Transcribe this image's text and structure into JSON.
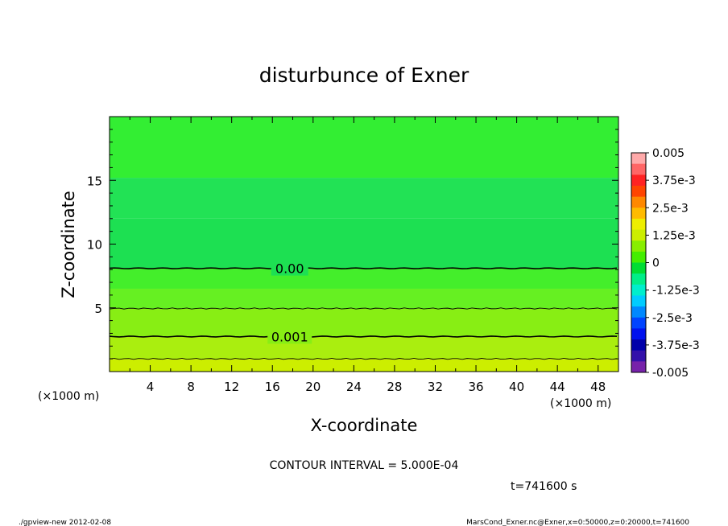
{
  "chart_data": {
    "type": "heatmap",
    "title": "disturbunce of Exner",
    "xlabel": "X-coordinate",
    "ylabel": "Z-coordinate",
    "x_unit": "(×1000 m)",
    "z_unit": "(×1000 m)",
    "xlim": [
      0,
      50
    ],
    "ylim": [
      0,
      20
    ],
    "x_ticks": [
      4,
      8,
      12,
      16,
      20,
      24,
      28,
      32,
      36,
      40,
      44,
      48
    ],
    "y_ticks": [
      5,
      10,
      15
    ],
    "contour_interval_label": "CONTOUR INTERVAL = 5.000E-04",
    "time_label": "t=741600 s",
    "contours": [
      {
        "z": 8.1,
        "value": 0.0,
        "label": "0.00",
        "label_x": 17.7,
        "major": true
      },
      {
        "z": 4.95,
        "value": 0.0005,
        "label": "",
        "major": false
      },
      {
        "z": 2.75,
        "value": 0.001,
        "label": "0.001",
        "label_x": 17.7,
        "major": true
      },
      {
        "z": 1.0,
        "value": 0.0015,
        "label": "",
        "major": false
      }
    ],
    "field_bands": [
      {
        "z0": 15.2,
        "z1": 20.0,
        "color": "#33ee33"
      },
      {
        "z0": 12.0,
        "z1": 15.2,
        "color": "#22e255"
      },
      {
        "z0": 8.1,
        "z1": 12.0,
        "color": "#1de052"
      },
      {
        "z0": 6.5,
        "z1": 8.1,
        "color": "#44ee2b"
      },
      {
        "z0": 4.95,
        "z1": 6.5,
        "color": "#66f022"
      },
      {
        "z0": 2.75,
        "z1": 4.95,
        "color": "#88ee14"
      },
      {
        "z0": 1.0,
        "z1": 2.75,
        "color": "#aaee0f"
      },
      {
        "z0": 0.0,
        "z1": 1.0,
        "color": "#ccee00"
      }
    ],
    "colorbar": {
      "labels": [
        "0.005",
        "3.75e-3",
        "2.5e-3",
        "1.25e-3",
        "0",
        "-1.25e-3",
        "-2.5e-3",
        "-3.75e-3",
        "-0.005"
      ],
      "colors": [
        "#ffaaaa",
        "#ff6666",
        "#ff2222",
        "#ff4400",
        "#ff8800",
        "#ffbb00",
        "#eeee00",
        "#ccee00",
        "#88ee00",
        "#44ee00",
        "#00dd33",
        "#00ee88",
        "#00eecc",
        "#00ccff",
        "#0088ff",
        "#0044ff",
        "#0011ee",
        "#0000aa",
        "#3311aa",
        "#7722aa"
      ]
    }
  },
  "footer": {
    "left": "./gpview-new   2012-02-08",
    "right": "MarsCond_Exner.nc@Exner,x=0:50000,z=0:20000,t=741600"
  }
}
